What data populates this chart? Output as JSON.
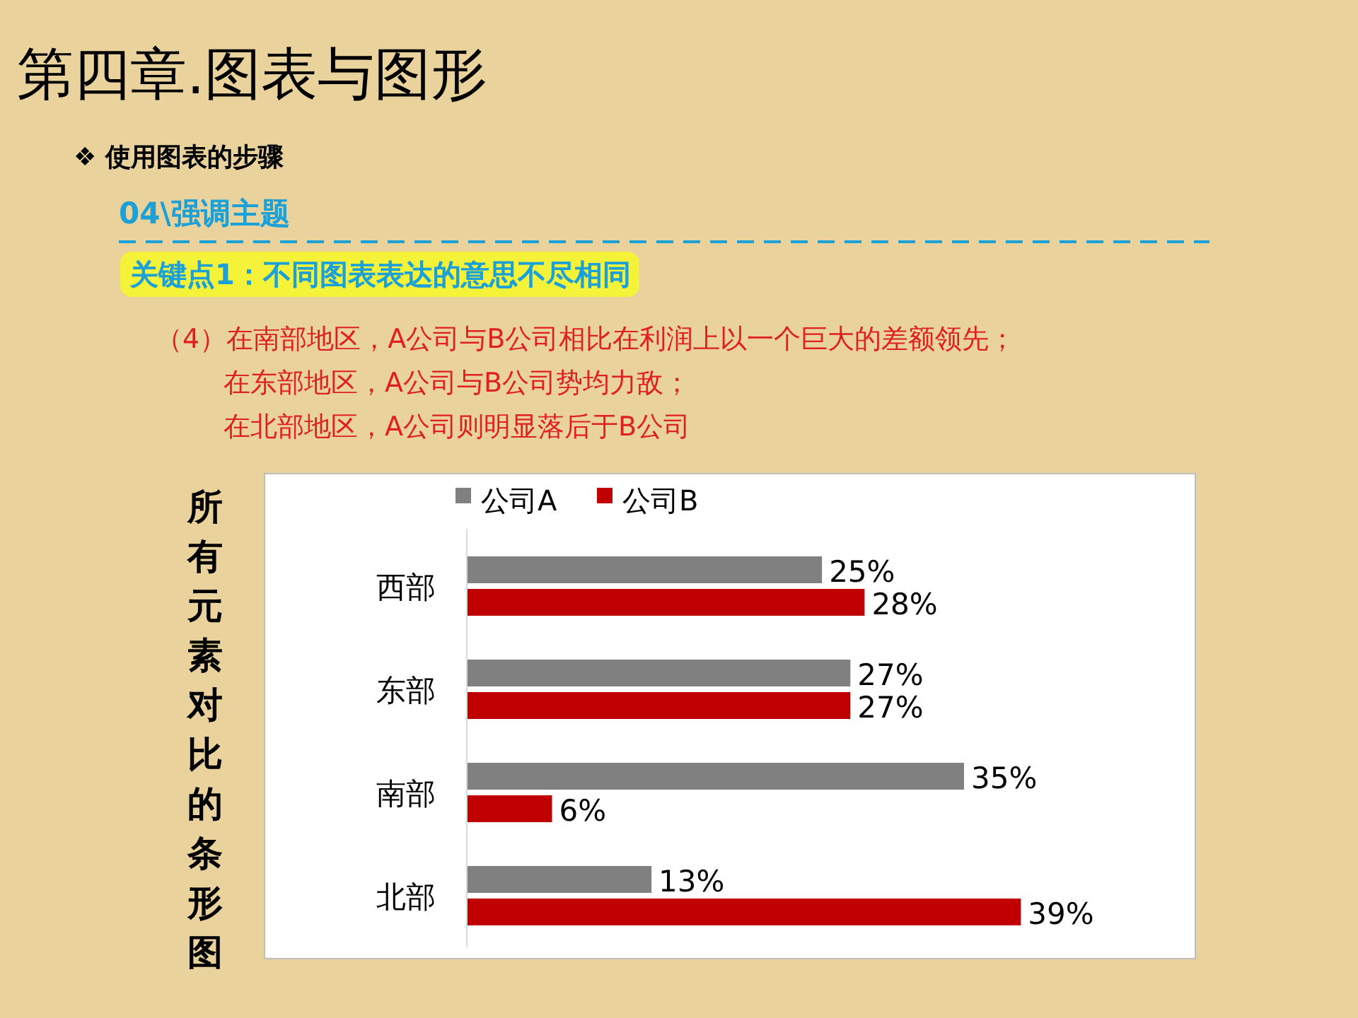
{
  "chart_data": {
    "type": "bar",
    "orientation": "horizontal",
    "title": "第四章.图表与图形",
    "subtitle": "❖  使用图表的步骤",
    "annotations": [
      "04\\强调主题",
      "关键点1：不同图表表达的意思不尽相同",
      "（4）在南部地区，A公司与B公司相比在利润上以一个巨大的差额领先；",
      "在东部地区，A公司与B公司势均力敌；",
      "在北部地区，A公司则明显落后于B公司",
      "所有元素对比的条形图"
    ],
    "categories": [
      "西部",
      "东部",
      "南部",
      "北部"
    ],
    "series": [
      {
        "name": "公司A",
        "color": "#808080",
        "values": [
          25,
          27,
          35,
          13
        ],
        "value_labels": [
          "25%",
          "27%",
          "35%",
          "13%"
        ]
      },
      {
        "name": "公司B",
        "color": "#c00000",
        "values": [
          28,
          27,
          6,
          39
        ],
        "value_labels": [
          "28%",
          "27%",
          "6%",
          "39%"
        ]
      }
    ],
    "legend": "top"
  }
}
